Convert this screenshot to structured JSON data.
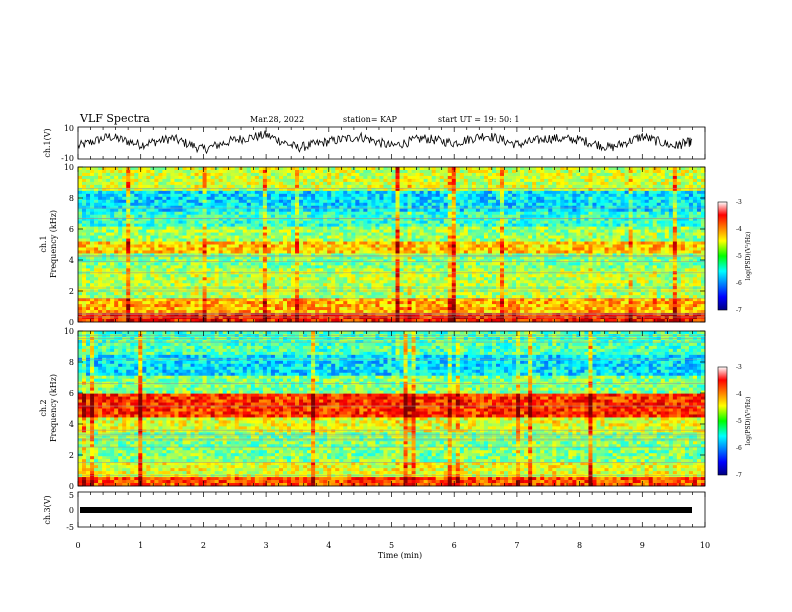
{
  "header": {
    "title": "VLF Spectra",
    "date": "Mar.28, 2022",
    "station": "station= KAP",
    "start": "start  UT =   19: 50: 1"
  },
  "chart_data": [
    {
      "type": "line",
      "panel": "ch1-waveform",
      "ylabel": "ch.1(V)",
      "ylim": [
        -10,
        10
      ],
      "y_ticks": [
        "10",
        "-10"
      ],
      "xlim": [
        0,
        10
      ],
      "note_series": "noisy waveform fluctuating roughly between -8 and 8 V",
      "x": [
        0,
        0.5,
        1,
        1.5,
        2,
        2.5,
        3,
        3.5,
        4,
        4.5,
        5,
        5.5,
        6,
        6.5,
        7,
        7.5,
        8,
        8.5,
        9,
        9.5,
        9.8
      ],
      "y": [
        -2,
        4,
        -1,
        3,
        -4,
        2,
        5,
        -3,
        1,
        4,
        -2,
        3,
        0,
        5,
        -1,
        3,
        2,
        -3,
        4,
        -2,
        1
      ]
    },
    {
      "type": "heatmap",
      "panel": "ch1-spectrogram",
      "ylabel": "ch.1\nFrequency (kHz)",
      "ylim": [
        0,
        10
      ],
      "y_ticks": [
        "0",
        "2",
        "4",
        "6",
        "8",
        "10"
      ],
      "xlim": [
        0,
        10
      ],
      "colorbar": {
        "label": "log(PSD)(V²/Hz)",
        "ticks": [
          "-3",
          "-4",
          "-5",
          "-6",
          "-7"
        ],
        "range": [
          -7,
          -3
        ]
      },
      "band_levels_by_khz": [
        {
          "f": [
            0,
            0.5
          ],
          "level": -3.6
        },
        {
          "f": [
            0.5,
            1.5
          ],
          "level": -4.2
        },
        {
          "f": [
            1.5,
            3.5
          ],
          "level": -4.8
        },
        {
          "f": [
            3.5,
            4.5
          ],
          "level": -5.0
        },
        {
          "f": [
            4.5,
            5.2
          ],
          "level": -4.3
        },
        {
          "f": [
            5.2,
            6.2
          ],
          "level": -4.9
        },
        {
          "f": [
            6.2,
            7.2
          ],
          "level": -5.3
        },
        {
          "f": [
            7.2,
            8.5
          ],
          "level": -5.6
        },
        {
          "f": [
            8.5,
            10
          ],
          "level": -4.7
        }
      ]
    },
    {
      "type": "heatmap",
      "panel": "ch2-spectrogram",
      "ylabel": "ch.2\nFrequency (kHz)",
      "ylim": [
        0,
        10
      ],
      "y_ticks": [
        "0",
        "2",
        "4",
        "6",
        "8",
        "10"
      ],
      "xlim": [
        0,
        10
      ],
      "colorbar": {
        "label": "log(PSD)(V²/Hz)",
        "ticks": [
          "-3",
          "-4",
          "-5",
          "-6",
          "-7"
        ],
        "range": [
          -7,
          -3
        ]
      },
      "band_levels_by_khz": [
        {
          "f": [
            0,
            0.5
          ],
          "level": -3.8
        },
        {
          "f": [
            0.5,
            1.5
          ],
          "level": -4.6
        },
        {
          "f": [
            1.5,
            3.5
          ],
          "level": -5.0
        },
        {
          "f": [
            3.5,
            4.5
          ],
          "level": -4.6
        },
        {
          "f": [
            4.5,
            6.0
          ],
          "level": -3.7
        },
        {
          "f": [
            6.0,
            7.2
          ],
          "level": -5.0
        },
        {
          "f": [
            7.2,
            8.5
          ],
          "level": -5.6
        },
        {
          "f": [
            8.5,
            10
          ],
          "level": -5.2
        }
      ]
    },
    {
      "type": "line",
      "panel": "ch3-waveform",
      "ylabel": "ch.3(V)",
      "ylim": [
        -5,
        5
      ],
      "y_ticks": [
        "5",
        "0",
        "-5"
      ],
      "xlim": [
        0,
        10
      ],
      "x": [
        0,
        9.8
      ],
      "y": [
        0,
        0
      ]
    }
  ],
  "x_axis": {
    "label": "Time  (min)",
    "ticks": [
      "0",
      "1",
      "2",
      "3",
      "4",
      "5",
      "6",
      "7",
      "8",
      "9",
      "10"
    ]
  }
}
